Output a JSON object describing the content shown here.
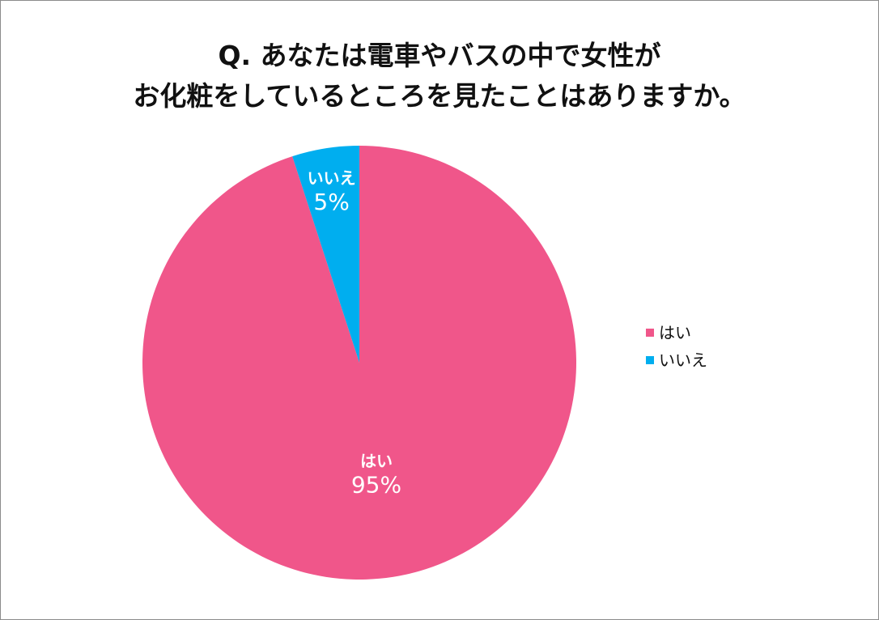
{
  "title_lines": [
    "Q. あなたは電車やバスの中で女性が",
    "お化粧をしているところを見たことはありますか。"
  ],
  "chart_data": {
    "type": "pie",
    "title": "Q. あなたは電車やバスの中で女性がお化粧をしているところを見たことはありますか。",
    "categories": [
      "はい",
      "いいえ"
    ],
    "values": [
      95,
      5
    ],
    "value_labels": [
      "95%",
      "5%"
    ],
    "colors": [
      "#f0568a",
      "#00aeef"
    ],
    "legend_position": "right"
  }
}
